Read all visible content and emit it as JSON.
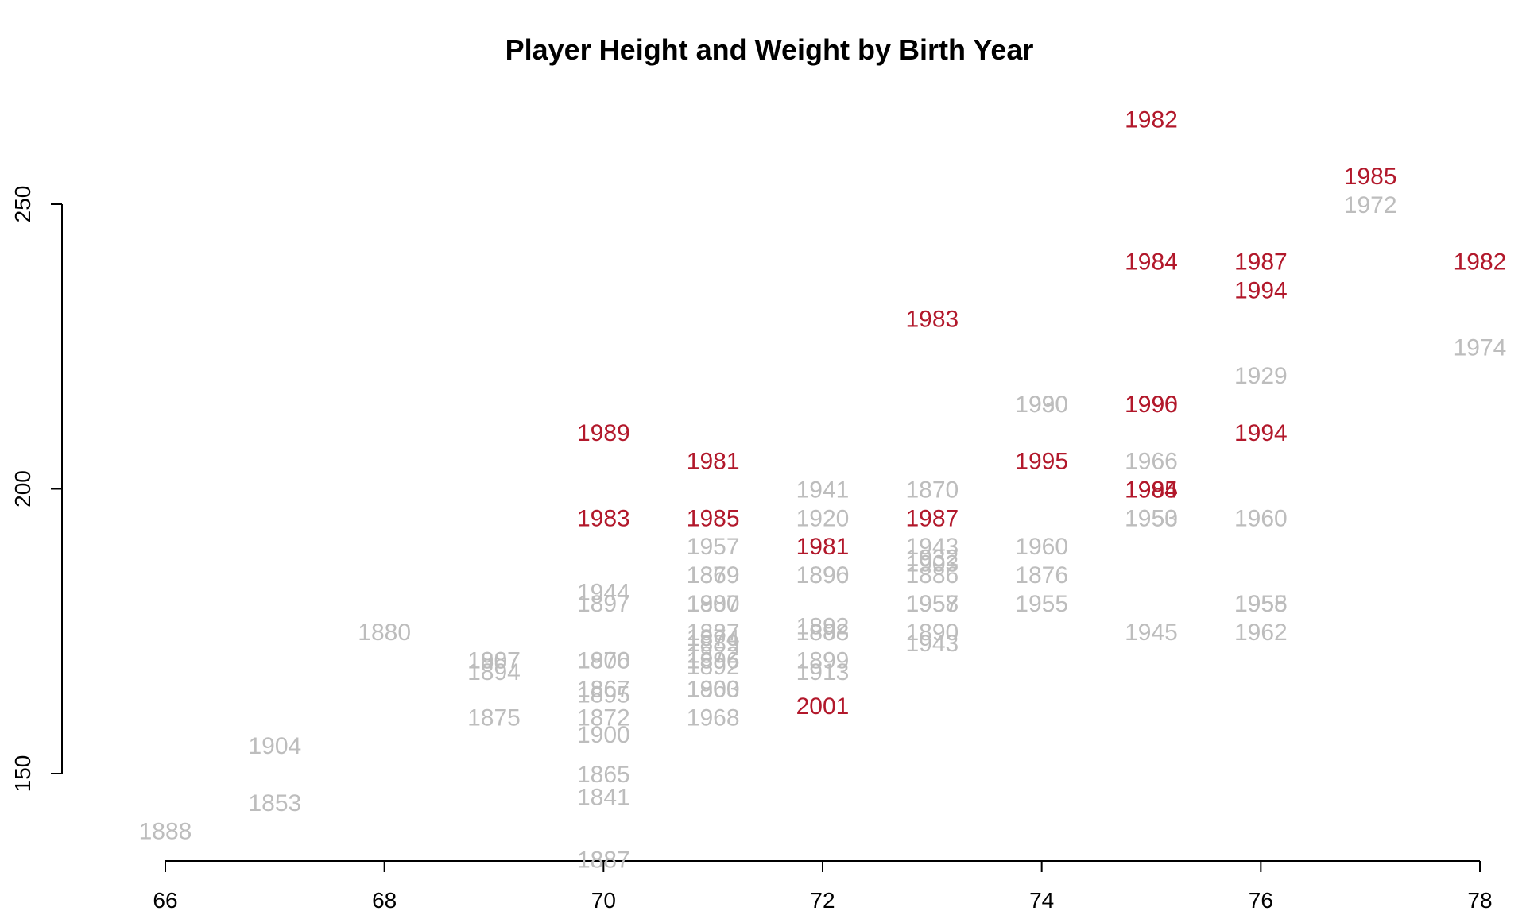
{
  "chart_data": {
    "type": "scatter",
    "title": "Player Height and Weight by Birth Year",
    "xlabel": "",
    "ylabel": "",
    "xlim": [
      66,
      78
    ],
    "ylim": [
      150,
      250
    ],
    "xticks": [
      66,
      68,
      70,
      72,
      74,
      76,
      78
    ],
    "yticks": [
      150,
      200,
      250
    ],
    "grid": false,
    "legend": "none",
    "colors": {
      "modern": "#b2182b",
      "historic": "#bdbdbd"
    },
    "points": [
      {
        "x": 75,
        "y": 265,
        "label": "1982",
        "group": "modern"
      },
      {
        "x": 77,
        "y": 255,
        "label": "1985",
        "group": "modern"
      },
      {
        "x": 77,
        "y": 250,
        "label": "1972",
        "group": "historic"
      },
      {
        "x": 75,
        "y": 240,
        "label": "1984",
        "group": "modern"
      },
      {
        "x": 76,
        "y": 240,
        "label": "1987",
        "group": "modern"
      },
      {
        "x": 78,
        "y": 240,
        "label": "1982",
        "group": "modern"
      },
      {
        "x": 76,
        "y": 235,
        "label": "1994",
        "group": "modern"
      },
      {
        "x": 73,
        "y": 230,
        "label": "1983",
        "group": "modern"
      },
      {
        "x": 78,
        "y": 225,
        "label": "1974",
        "group": "historic"
      },
      {
        "x": 76,
        "y": 220,
        "label": "1929",
        "group": "historic"
      },
      {
        "x": 74,
        "y": 215,
        "label": "1930",
        "group": "historic"
      },
      {
        "x": 74,
        "y": 215,
        "label": "1990",
        "group": "historic"
      },
      {
        "x": 75,
        "y": 215,
        "label": "1990",
        "group": "modern"
      },
      {
        "x": 75,
        "y": 215,
        "label": "1996",
        "group": "modern"
      },
      {
        "x": 70,
        "y": 210,
        "label": "1989",
        "group": "modern"
      },
      {
        "x": 76,
        "y": 210,
        "label": "1994",
        "group": "modern"
      },
      {
        "x": 71,
        "y": 205,
        "label": "1981",
        "group": "modern"
      },
      {
        "x": 74,
        "y": 205,
        "label": "1995",
        "group": "modern"
      },
      {
        "x": 75,
        "y": 205,
        "label": "1966",
        "group": "historic"
      },
      {
        "x": 72,
        "y": 200,
        "label": "1941",
        "group": "historic"
      },
      {
        "x": 73,
        "y": 200,
        "label": "1870",
        "group": "historic"
      },
      {
        "x": 75,
        "y": 200,
        "label": "1984",
        "group": "modern"
      },
      {
        "x": 75,
        "y": 200,
        "label": "1995",
        "group": "modern"
      },
      {
        "x": 70,
        "y": 195,
        "label": "1983",
        "group": "modern"
      },
      {
        "x": 71,
        "y": 195,
        "label": "1985",
        "group": "modern"
      },
      {
        "x": 72,
        "y": 195,
        "label": "1920",
        "group": "historic"
      },
      {
        "x": 73,
        "y": 195,
        "label": "1987",
        "group": "modern"
      },
      {
        "x": 75,
        "y": 195,
        "label": "1950",
        "group": "historic"
      },
      {
        "x": 75,
        "y": 195,
        "label": "1953",
        "group": "historic"
      },
      {
        "x": 76,
        "y": 195,
        "label": "1960",
        "group": "historic"
      },
      {
        "x": 71,
        "y": 190,
        "label": "1957",
        "group": "historic"
      },
      {
        "x": 72,
        "y": 190,
        "label": "1981",
        "group": "modern"
      },
      {
        "x": 73,
        "y": 190,
        "label": "1943",
        "group": "historic"
      },
      {
        "x": 74,
        "y": 190,
        "label": "1960",
        "group": "historic"
      },
      {
        "x": 73,
        "y": 188,
        "label": "1932",
        "group": "historic"
      },
      {
        "x": 73,
        "y": 187,
        "label": "1903",
        "group": "historic"
      },
      {
        "x": 71,
        "y": 185,
        "label": "1879",
        "group": "historic"
      },
      {
        "x": 71,
        "y": 185,
        "label": "1869",
        "group": "historic"
      },
      {
        "x": 72,
        "y": 185,
        "label": "1890",
        "group": "historic"
      },
      {
        "x": 72,
        "y": 185,
        "label": "1896",
        "group": "historic"
      },
      {
        "x": 73,
        "y": 185,
        "label": "1886",
        "group": "historic"
      },
      {
        "x": 74,
        "y": 185,
        "label": "1876",
        "group": "historic"
      },
      {
        "x": 70,
        "y": 182,
        "label": "1944",
        "group": "historic"
      },
      {
        "x": 70,
        "y": 180,
        "label": "1897",
        "group": "historic"
      },
      {
        "x": 71,
        "y": 180,
        "label": "1907",
        "group": "historic"
      },
      {
        "x": 71,
        "y": 180,
        "label": "1880",
        "group": "historic"
      },
      {
        "x": 73,
        "y": 180,
        "label": "1957",
        "group": "historic"
      },
      {
        "x": 73,
        "y": 180,
        "label": "1958",
        "group": "historic"
      },
      {
        "x": 74,
        "y": 180,
        "label": "1955",
        "group": "historic"
      },
      {
        "x": 76,
        "y": 180,
        "label": "1955",
        "group": "historic"
      },
      {
        "x": 76,
        "y": 180,
        "label": "1958",
        "group": "historic"
      },
      {
        "x": 72,
        "y": 176,
        "label": "1892",
        "group": "historic"
      },
      {
        "x": 71,
        "y": 175,
        "label": "1887",
        "group": "historic"
      },
      {
        "x": 71,
        "y": 174,
        "label": "1874",
        "group": "historic"
      },
      {
        "x": 72,
        "y": 175,
        "label": "1888",
        "group": "historic"
      },
      {
        "x": 72,
        "y": 175,
        "label": "1893",
        "group": "historic"
      },
      {
        "x": 73,
        "y": 175,
        "label": "1890",
        "group": "historic"
      },
      {
        "x": 68,
        "y": 175,
        "label": "1880",
        "group": "historic"
      },
      {
        "x": 75,
        "y": 175,
        "label": "1945",
        "group": "historic"
      },
      {
        "x": 76,
        "y": 175,
        "label": "1962",
        "group": "historic"
      },
      {
        "x": 71,
        "y": 173,
        "label": "1889",
        "group": "historic"
      },
      {
        "x": 73,
        "y": 173,
        "label": "1943",
        "group": "historic"
      },
      {
        "x": 71,
        "y": 171,
        "label": "1872",
        "group": "historic"
      },
      {
        "x": 69,
        "y": 170,
        "label": "1887",
        "group": "historic"
      },
      {
        "x": 69,
        "y": 170,
        "label": "1907",
        "group": "historic"
      },
      {
        "x": 70,
        "y": 170,
        "label": "1870",
        "group": "historic"
      },
      {
        "x": 70,
        "y": 170,
        "label": "1906",
        "group": "historic"
      },
      {
        "x": 71,
        "y": 170,
        "label": "1896",
        "group": "historic"
      },
      {
        "x": 72,
        "y": 170,
        "label": "1899",
        "group": "historic"
      },
      {
        "x": 71,
        "y": 169,
        "label": "1892",
        "group": "historic"
      },
      {
        "x": 69,
        "y": 168,
        "label": "1894",
        "group": "historic"
      },
      {
        "x": 72,
        "y": 168,
        "label": "1913",
        "group": "historic"
      },
      {
        "x": 70,
        "y": 165,
        "label": "1867",
        "group": "historic"
      },
      {
        "x": 71,
        "y": 165,
        "label": "1860",
        "group": "historic"
      },
      {
        "x": 71,
        "y": 165,
        "label": "1903",
        "group": "historic"
      },
      {
        "x": 70,
        "y": 164,
        "label": "1895",
        "group": "historic"
      },
      {
        "x": 72,
        "y": 162,
        "label": "2001",
        "group": "modern"
      },
      {
        "x": 69,
        "y": 160,
        "label": "1875",
        "group": "historic"
      },
      {
        "x": 70,
        "y": 160,
        "label": "1872",
        "group": "historic"
      },
      {
        "x": 71,
        "y": 160,
        "label": "1968",
        "group": "historic"
      },
      {
        "x": 70,
        "y": 157,
        "label": "1900",
        "group": "historic"
      },
      {
        "x": 67,
        "y": 155,
        "label": "1904",
        "group": "historic"
      },
      {
        "x": 70,
        "y": 150,
        "label": "1865",
        "group": "historic"
      },
      {
        "x": 70,
        "y": 146,
        "label": "1841",
        "group": "historic"
      },
      {
        "x": 67,
        "y": 145,
        "label": "1853",
        "group": "historic"
      },
      {
        "x": 66,
        "y": 140,
        "label": "1888",
        "group": "historic"
      },
      {
        "x": 70,
        "y": 135,
        "label": "1887",
        "group": "historic"
      }
    ]
  }
}
